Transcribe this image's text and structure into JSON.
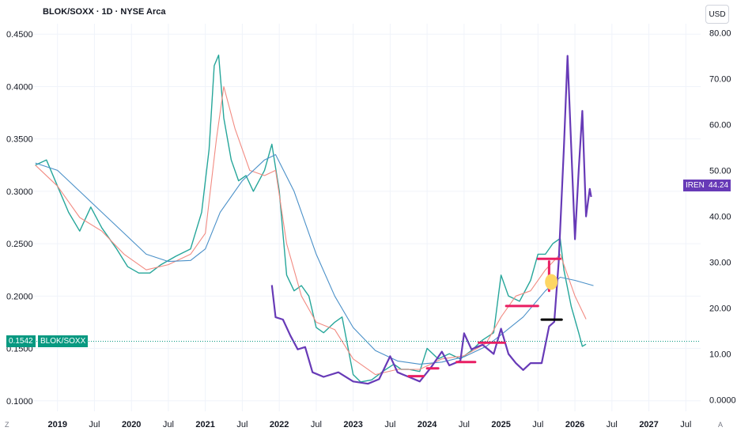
{
  "header": {
    "title": "BLOK/SOXX · 1D · NYSE Arca",
    "currency": "USD"
  },
  "corner": {
    "left": "Z",
    "right": "A"
  },
  "badges": {
    "left_value": "0.1542",
    "left_symbol": "BLOK/SOXX",
    "right_symbol": "IREN",
    "right_value": "44.24",
    "left_color": "#089981",
    "right_color": "#673ab7"
  },
  "chart_data": {
    "type": "line",
    "title": "BLOK/SOXX · 1D · NYSE Arca",
    "xlabel": "",
    "ylabel": "",
    "x_ticks": [
      {
        "label": "2019",
        "x": 2019.0,
        "bold": true
      },
      {
        "label": "Jul",
        "x": 2019.5,
        "bold": false
      },
      {
        "label": "2020",
        "x": 2020.0,
        "bold": true
      },
      {
        "label": "Jul",
        "x": 2020.5,
        "bold": false
      },
      {
        "label": "2021",
        "x": 2021.0,
        "bold": true
      },
      {
        "label": "Jul",
        "x": 2021.5,
        "bold": false
      },
      {
        "label": "2022",
        "x": 2022.0,
        "bold": true
      },
      {
        "label": "Jul",
        "x": 2022.5,
        "bold": false
      },
      {
        "label": "2023",
        "x": 2023.0,
        "bold": true
      },
      {
        "label": "Jul",
        "x": 2023.5,
        "bold": false
      },
      {
        "label": "2024",
        "x": 2024.0,
        "bold": true
      },
      {
        "label": "Jul",
        "x": 2024.5,
        "bold": false
      },
      {
        "label": "2025",
        "x": 2025.0,
        "bold": true
      },
      {
        "label": "Jul",
        "x": 2025.5,
        "bold": false
      },
      {
        "label": "2026",
        "x": 2026.0,
        "bold": true
      },
      {
        "label": "Jul",
        "x": 2026.5,
        "bold": false
      },
      {
        "label": "2027",
        "x": 2027.0,
        "bold": true
      },
      {
        "label": "Jul",
        "x": 2027.5,
        "bold": false
      }
    ],
    "left_axis": {
      "ticks": [
        "0.4500",
        "0.4000",
        "0.3500",
        "0.3000",
        "0.2500",
        "0.2000",
        "0.1500",
        "0.1000"
      ],
      "range": [
        0.09,
        0.46
      ]
    },
    "right_axis": {
      "ticks": [
        "80.00",
        "70.00",
        "60.00",
        "50.00",
        "40.00",
        "30.00",
        "20.00",
        "10.00",
        "0.0000"
      ],
      "range": [
        -2.5,
        82
      ]
    },
    "series": [
      {
        "name": "BLOK/SOXX",
        "color": "#26a69a",
        "axis": "left",
        "points": [
          [
            2018.7,
            0.325
          ],
          [
            2018.85,
            0.33
          ],
          [
            2019.0,
            0.305
          ],
          [
            2019.15,
            0.28
          ],
          [
            2019.3,
            0.262
          ],
          [
            2019.45,
            0.285
          ],
          [
            2019.6,
            0.265
          ],
          [
            2019.8,
            0.245
          ],
          [
            2019.95,
            0.228
          ],
          [
            2020.1,
            0.222
          ],
          [
            2020.25,
            0.222
          ],
          [
            2020.4,
            0.23
          ],
          [
            2020.6,
            0.238
          ],
          [
            2020.8,
            0.245
          ],
          [
            2020.95,
            0.28
          ],
          [
            2021.05,
            0.34
          ],
          [
            2021.12,
            0.42
          ],
          [
            2021.18,
            0.43
          ],
          [
            2021.25,
            0.37
          ],
          [
            2021.35,
            0.33
          ],
          [
            2021.45,
            0.31
          ],
          [
            2021.55,
            0.315
          ],
          [
            2021.65,
            0.3
          ],
          [
            2021.8,
            0.32
          ],
          [
            2021.9,
            0.345
          ],
          [
            2022.0,
            0.3
          ],
          [
            2022.05,
            0.26
          ],
          [
            2022.1,
            0.22
          ],
          [
            2022.2,
            0.205
          ],
          [
            2022.3,
            0.21
          ],
          [
            2022.4,
            0.2
          ],
          [
            2022.5,
            0.17
          ],
          [
            2022.6,
            0.165
          ],
          [
            2022.75,
            0.175
          ],
          [
            2022.85,
            0.18
          ],
          [
            2023.0,
            0.125
          ],
          [
            2023.1,
            0.118
          ],
          [
            2023.25,
            0.12
          ],
          [
            2023.4,
            0.128
          ],
          [
            2023.55,
            0.135
          ],
          [
            2023.65,
            0.13
          ],
          [
            2023.75,
            0.13
          ],
          [
            2023.9,
            0.128
          ],
          [
            2024.0,
            0.15
          ],
          [
            2024.15,
            0.14
          ],
          [
            2024.3,
            0.145
          ],
          [
            2024.45,
            0.14
          ],
          [
            2024.6,
            0.148
          ],
          [
            2024.75,
            0.158
          ],
          [
            2024.9,
            0.165
          ],
          [
            2025.0,
            0.22
          ],
          [
            2025.1,
            0.2
          ],
          [
            2025.25,
            0.195
          ],
          [
            2025.4,
            0.215
          ],
          [
            2025.5,
            0.24
          ],
          [
            2025.6,
            0.24
          ],
          [
            2025.7,
            0.25
          ],
          [
            2025.8,
            0.255
          ],
          [
            2025.85,
            0.225
          ],
          [
            2025.95,
            0.19
          ],
          [
            2026.05,
            0.165
          ],
          [
            2026.1,
            0.152
          ],
          [
            2026.15,
            0.154
          ]
        ]
      },
      {
        "name": "",
        "color": "#f28b82",
        "axis": "left",
        "points": [
          [
            2018.7,
            0.325
          ],
          [
            2019.0,
            0.305
          ],
          [
            2019.3,
            0.275
          ],
          [
            2019.6,
            0.262
          ],
          [
            2019.9,
            0.24
          ],
          [
            2020.2,
            0.225
          ],
          [
            2020.5,
            0.23
          ],
          [
            2020.8,
            0.24
          ],
          [
            2021.0,
            0.26
          ],
          [
            2021.15,
            0.35
          ],
          [
            2021.25,
            0.4
          ],
          [
            2021.4,
            0.36
          ],
          [
            2021.6,
            0.32
          ],
          [
            2021.8,
            0.315
          ],
          [
            2021.95,
            0.32
          ],
          [
            2022.1,
            0.25
          ],
          [
            2022.3,
            0.2
          ],
          [
            2022.5,
            0.175
          ],
          [
            2022.75,
            0.168
          ],
          [
            2023.0,
            0.14
          ],
          [
            2023.3,
            0.125
          ],
          [
            2023.6,
            0.13
          ],
          [
            2023.9,
            0.13
          ],
          [
            2024.2,
            0.14
          ],
          [
            2024.5,
            0.143
          ],
          [
            2024.8,
            0.155
          ],
          [
            2025.0,
            0.18
          ],
          [
            2025.2,
            0.2
          ],
          [
            2025.4,
            0.205
          ],
          [
            2025.6,
            0.225
          ],
          [
            2025.8,
            0.24
          ],
          [
            2026.0,
            0.2
          ],
          [
            2026.15,
            0.178
          ]
        ]
      },
      {
        "name": "",
        "color": "#4a90c8",
        "axis": "left",
        "points": [
          [
            2018.7,
            0.327
          ],
          [
            2019.0,
            0.32
          ],
          [
            2019.3,
            0.3
          ],
          [
            2019.6,
            0.28
          ],
          [
            2019.9,
            0.26
          ],
          [
            2020.2,
            0.24
          ],
          [
            2020.5,
            0.233
          ],
          [
            2020.8,
            0.234
          ],
          [
            2021.0,
            0.245
          ],
          [
            2021.2,
            0.28
          ],
          [
            2021.5,
            0.31
          ],
          [
            2021.8,
            0.33
          ],
          [
            2021.95,
            0.335
          ],
          [
            2022.2,
            0.3
          ],
          [
            2022.5,
            0.24
          ],
          [
            2022.75,
            0.2
          ],
          [
            2023.0,
            0.17
          ],
          [
            2023.3,
            0.148
          ],
          [
            2023.6,
            0.138
          ],
          [
            2023.9,
            0.135
          ],
          [
            2024.2,
            0.137
          ],
          [
            2024.5,
            0.142
          ],
          [
            2024.8,
            0.152
          ],
          [
            2025.0,
            0.163
          ],
          [
            2025.3,
            0.18
          ],
          [
            2025.6,
            0.205
          ],
          [
            2025.8,
            0.218
          ],
          [
            2026.0,
            0.215
          ],
          [
            2026.25,
            0.21
          ]
        ]
      },
      {
        "name": "IREN",
        "color": "#673ab7",
        "axis": "right",
        "points": [
          [
            2021.9,
            25.0
          ],
          [
            2021.95,
            18.0
          ],
          [
            2022.05,
            17.5
          ],
          [
            2022.15,
            14.0
          ],
          [
            2022.25,
            11.0
          ],
          [
            2022.35,
            11.5
          ],
          [
            2022.45,
            6.0
          ],
          [
            2022.6,
            5.0
          ],
          [
            2022.8,
            6.0
          ],
          [
            2023.0,
            4.0
          ],
          [
            2023.2,
            3.5
          ],
          [
            2023.35,
            4.5
          ],
          [
            2023.5,
            9.5
          ],
          [
            2023.6,
            6.0
          ],
          [
            2023.75,
            5.0
          ],
          [
            2023.9,
            4.0
          ],
          [
            2024.05,
            7.0
          ],
          [
            2024.2,
            10.5
          ],
          [
            2024.3,
            7.5
          ],
          [
            2024.45,
            8.5
          ],
          [
            2024.5,
            14.5
          ],
          [
            2024.6,
            11.0
          ],
          [
            2024.75,
            12.0
          ],
          [
            2024.9,
            10.0
          ],
          [
            2025.0,
            15.5
          ],
          [
            2025.1,
            10.0
          ],
          [
            2025.2,
            8.0
          ],
          [
            2025.3,
            6.5
          ],
          [
            2025.4,
            8.0
          ],
          [
            2025.55,
            8.0
          ],
          [
            2025.65,
            16.0
          ],
          [
            2025.72,
            17.0
          ],
          [
            2025.78,
            30.0
          ],
          [
            2025.85,
            55.0
          ],
          [
            2025.9,
            75.0
          ],
          [
            2025.95,
            55.0
          ],
          [
            2026.0,
            35.0
          ],
          [
            2026.05,
            50.0
          ],
          [
            2026.1,
            63.0
          ],
          [
            2026.15,
            40.0
          ],
          [
            2026.2,
            46.0
          ],
          [
            2026.22,
            44.24
          ]
        ]
      }
    ],
    "markers": [
      {
        "type": "segment",
        "color": "#e91e63",
        "x0": 2023.75,
        "x1": 2023.95,
        "y": 0.1235,
        "axis": "left"
      },
      {
        "type": "segment",
        "color": "#e91e63",
        "x0": 2024.0,
        "x1": 2024.15,
        "y": 0.131,
        "axis": "left"
      },
      {
        "type": "segment",
        "color": "#e91e63",
        "x0": 2024.4,
        "x1": 2024.65,
        "y": 0.137,
        "axis": "left"
      },
      {
        "type": "segment",
        "color": "#e91e63",
        "x0": 2024.7,
        "x1": 2025.05,
        "y": 0.1555,
        "axis": "left"
      },
      {
        "type": "segment",
        "color": "#e91e63",
        "x0": 2025.07,
        "x1": 2025.5,
        "y": 0.1905,
        "axis": "left"
      },
      {
        "type": "segment",
        "color": "#e91e63",
        "x0": 2025.5,
        "x1": 2025.8,
        "y": 0.2355,
        "axis": "left"
      },
      {
        "type": "segment",
        "color": "#000000",
        "x0": 2025.55,
        "x1": 2025.82,
        "y": 0.1775,
        "axis": "left"
      },
      {
        "type": "segment",
        "color": "#e91e63",
        "x0": 2025.65,
        "x1": 2025.65,
        "y0": 0.233,
        "y1": 0.205,
        "axis": "left"
      },
      {
        "type": "blob",
        "color": "#fdd663",
        "x": 2025.68,
        "y": 0.2135,
        "axis": "left"
      }
    ]
  }
}
